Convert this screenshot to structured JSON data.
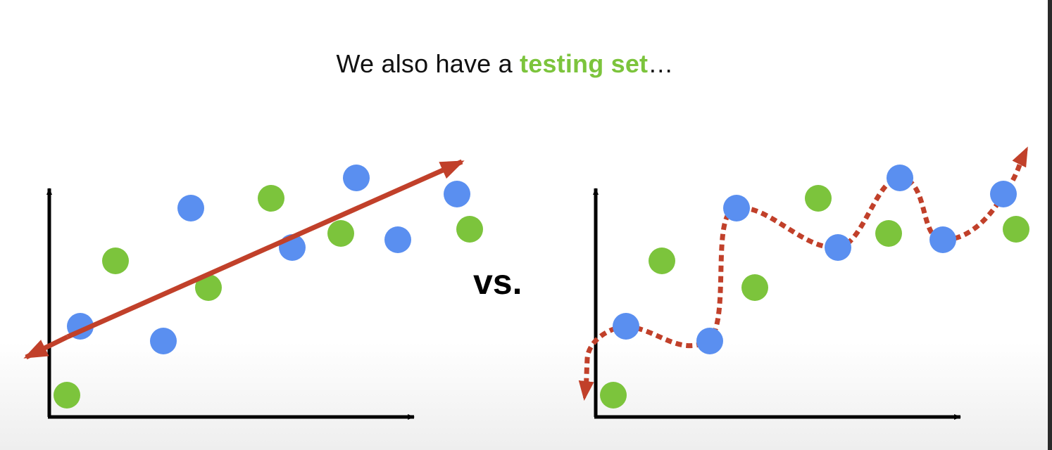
{
  "slide": {
    "title_prefix": "We also have a ",
    "title_highlight": "testing set",
    "title_suffix": "…",
    "comparison_label": "vs."
  },
  "colors": {
    "training": "#5a8ff0",
    "testing": "#7cc43c",
    "fit": "#c1402a",
    "axes": "#000000"
  },
  "icons": {
    "arrowhead": "filled-triangle"
  }
}
